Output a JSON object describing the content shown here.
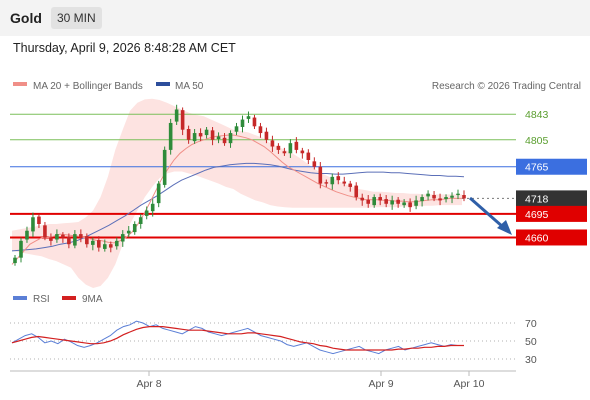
{
  "header": {
    "asset": "Gold",
    "timeframe": "30 MIN"
  },
  "datetime": "Thursday, April 9, 2026 8:48:28 AM CET",
  "legend": {
    "bb_label": "MA 20 + Bollinger Bands",
    "ma50_label": "MA 50",
    "credit": "Research © 2026 Trading Central"
  },
  "rsi_legend": {
    "rsi_label": "RSI",
    "ma_label": "9MA"
  },
  "colors": {
    "bb_fill": "#fde3e1",
    "ma20": "#f08f88",
    "ma50": "#5b6fb8",
    "up": "#2e8b3a",
    "down": "#c62828",
    "resistance": "#7bbf5a",
    "current": "#3b6fe0",
    "support": "#e00000",
    "last_price": "#333333",
    "rsi": "#5b7fd6",
    "rsi_ma": "#d32020",
    "arrow": "#2f5fa8"
  },
  "chart_data": [
    {
      "type": "candlestick",
      "title": "Gold",
      "ylim": [
        4585,
        4870
      ],
      "x_ticks": [
        "Apr 8",
        "Apr 9",
        "Apr 10"
      ],
      "levels": [
        {
          "value": 4843,
          "label": "4843",
          "kind": "resistance"
        },
        {
          "value": 4805,
          "label": "4805",
          "kind": "resistance"
        },
        {
          "value": 4765,
          "label": "4765",
          "kind": "pivot"
        },
        {
          "value": 4718,
          "label": "4718",
          "kind": "last"
        },
        {
          "value": 4695,
          "label": "4695",
          "kind": "support"
        },
        {
          "value": 4660,
          "label": "4660",
          "kind": "support"
        }
      ],
      "close_series": [
        4630,
        4655,
        4670,
        4690,
        4680,
        4660,
        4655,
        4665,
        4660,
        4650,
        4665,
        4660,
        4650,
        4655,
        4645,
        4650,
        4645,
        4655,
        4665,
        4670,
        4680,
        4690,
        4700,
        4710,
        4740,
        4790,
        4830,
        4850,
        4820,
        4805,
        4815,
        4810,
        4820,
        4805,
        4810,
        4800,
        4815,
        4825,
        4835,
        4840,
        4825,
        4815,
        4805,
        4795,
        4790,
        4785,
        4800,
        4790,
        4785,
        4775,
        4765,
        4740,
        4740,
        4750,
        4745,
        4740,
        4735,
        4720,
        4715,
        4710,
        4720,
        4715,
        4710,
        4715,
        4710,
        4712,
        4705,
        4715,
        4720,
        4725,
        4718,
        4715,
        4720,
        4722,
        4725,
        4718
      ],
      "ma20": [
        4620,
        4630,
        4640,
        4650,
        4655,
        4660,
        4660,
        4662,
        4665,
        4664,
        4663,
        4662,
        4660,
        4658,
        4656,
        4655,
        4653,
        4652,
        4655,
        4660,
        4668,
        4680,
        4695,
        4712,
        4730,
        4748,
        4762,
        4775,
        4785,
        4792,
        4798,
        4802,
        4805,
        4808,
        4810,
        4811,
        4812,
        4812,
        4810,
        4808,
        4805,
        4800,
        4795,
        4788,
        4780,
        4772,
        4765,
        4760,
        4755,
        4750,
        4745,
        4740,
        4736,
        4732,
        4728,
        4725,
        4722,
        4720,
        4718,
        4716,
        4716,
        4716,
        4715,
        4715,
        4714,
        4714,
        4713,
        4713,
        4714,
        4715,
        4716,
        4716,
        4717,
        4718,
        4718,
        4718
      ],
      "bb_upper": [
        4670,
        4672,
        4674,
        4676,
        4678,
        4680,
        4680,
        4681,
        4682,
        4683,
        4690,
        4700,
        4720,
        4750,
        4790,
        4820,
        4848,
        4860,
        4865,
        4866,
        4864,
        4860,
        4855,
        4850,
        4845,
        4842,
        4840,
        4835,
        4830,
        4825,
        4820,
        4818,
        4816,
        4812,
        4808,
        4800,
        4795,
        4790,
        4785,
        4778,
        4770,
        4762,
        4755,
        4750,
        4745,
        4740,
        4736,
        4732,
        4730,
        4728,
        4728,
        4727,
        4726,
        4726,
        4725,
        4725,
        4724,
        4724,
        4724,
        4724,
        4724,
        4724
      ],
      "bb_lower": [
        4640,
        4638,
        4636,
        4634,
        4632,
        4628,
        4625,
        4620,
        4615,
        4600,
        4590,
        4585,
        4588,
        4600,
        4620,
        4650,
        4680,
        4700,
        4720,
        4735,
        4748,
        4755,
        4758,
        4758,
        4755,
        4752,
        4748,
        4744,
        4740,
        4735,
        4732,
        4725,
        4720,
        4715,
        4712,
        4708,
        4706,
        4705,
        4704,
        4704,
        4704,
        4704,
        4704,
        4704,
        4704,
        4704,
        4704,
        4704,
        4704,
        4705,
        4705,
        4705,
        4705,
        4706,
        4706,
        4706,
        4707,
        4707,
        4708,
        4708,
        4708,
        4708
      ],
      "ma50": [
        4640,
        4641,
        4642,
        4643,
        4645,
        4647,
        4650,
        4652,
        4655,
        4660,
        4666,
        4672,
        4678,
        4685,
        4692,
        4700,
        4708,
        4715,
        4722,
        4730,
        4738,
        4745,
        4750,
        4755,
        4760,
        4764,
        4766,
        4768,
        4769,
        4770,
        4770,
        4769,
        4768,
        4766,
        4763,
        4760,
        4758,
        4756,
        4755,
        4755,
        4754,
        4754,
        4755,
        4756,
        4757,
        4757,
        4757,
        4756,
        4756,
        4755,
        4754,
        4753,
        4752,
        4752,
        4751,
        4751,
        4750
      ]
    },
    {
      "type": "line",
      "title": "RSI",
      "ylim": [
        20,
        80
      ],
      "y_ticks": [
        30,
        50,
        70
      ],
      "series": [
        {
          "name": "RSI",
          "values": [
            48,
            52,
            56,
            58,
            54,
            48,
            50,
            47,
            52,
            49,
            45,
            43,
            45,
            48,
            52,
            56,
            62,
            66,
            68,
            72,
            70,
            66,
            68,
            64,
            62,
            60,
            58,
            62,
            66,
            64,
            60,
            58,
            56,
            58,
            60,
            62,
            64,
            60,
            56,
            54,
            52,
            50,
            46,
            44,
            46,
            48,
            44,
            40,
            38,
            36,
            38,
            40,
            42,
            44,
            40,
            38,
            36,
            40,
            42,
            44,
            40,
            42,
            44,
            46,
            48,
            46,
            44,
            46,
            45,
            45
          ]
        },
        {
          "name": "9MA",
          "values": [
            48,
            50,
            52,
            54,
            55,
            54,
            53,
            52,
            51,
            50,
            49,
            48,
            47,
            47,
            48,
            50,
            53,
            57,
            60,
            63,
            65,
            66,
            66,
            66,
            65,
            64,
            63,
            62,
            62,
            62,
            61,
            60,
            59,
            58,
            58,
            58,
            59,
            59,
            58,
            57,
            56,
            55,
            53,
            51,
            49,
            48,
            47,
            45,
            44,
            42,
            41,
            40,
            40,
            40,
            40,
            40,
            40,
            40,
            40,
            41,
            41,
            42,
            42,
            43,
            43,
            44,
            44,
            45,
            45,
            45
          ]
        }
      ]
    }
  ]
}
